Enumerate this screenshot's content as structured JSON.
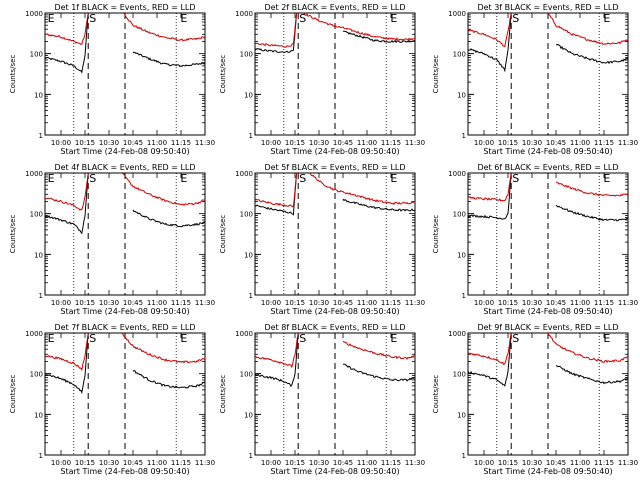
{
  "chart_data": [
    {
      "type": "line",
      "title": "Det 1f BLACK = Events, RED = LLD",
      "xlabel": "Start Time (24-Feb-08 09:50:40)",
      "ylabel": "Counts/sec",
      "yscale": "log",
      "ylim": [
        1,
        1000
      ],
      "xlim": [
        "09:50",
        "11:30"
      ],
      "xticks": [
        "10:00",
        "10:15",
        "10:30",
        "10:45",
        "11:00",
        "11:15",
        "11:30"
      ],
      "yticks": [
        "1",
        "10",
        "100",
        "1000"
      ],
      "markers": [
        "E",
        "S",
        "E"
      ],
      "series": [
        {
          "color": "#000000",
          "x": [
            "09:50",
            "10:00",
            "10:08",
            "10:13",
            "10:15",
            "10:17"
          ],
          "y": [
            80,
            65,
            50,
            35,
            90,
            1000
          ]
        },
        {
          "color": "#d00000",
          "x": [
            "09:50",
            "10:00",
            "10:08",
            "10:13",
            "10:15",
            "10:17"
          ],
          "y": [
            300,
            260,
            200,
            170,
            300,
            1000
          ]
        },
        {
          "color": "#000000",
          "x": [
            "10:45",
            "10:55",
            "11:05",
            "11:15",
            "11:25",
            "11:30"
          ],
          "y": [
            110,
            75,
            55,
            50,
            55,
            60
          ]
        },
        {
          "color": "#d00000",
          "x": [
            "10:39",
            "10:45",
            "10:55",
            "11:05",
            "11:15",
            "11:25",
            "11:30"
          ],
          "y": [
            1000,
            500,
            330,
            250,
            215,
            230,
            260
          ]
        }
      ]
    },
    {
      "type": "line",
      "title": "Det 2f BLACK = Events, RED = LLD",
      "xlabel": "Start Time (24-Feb-08 09:50:40)",
      "ylabel": "Counts/sec",
      "yscale": "log",
      "ylim": [
        1,
        1000
      ],
      "xlim": [
        "09:50",
        "11:30"
      ],
      "xticks": [
        "10:00",
        "10:15",
        "10:30",
        "10:45",
        "11:00",
        "11:15",
        "11:30"
      ],
      "yticks": [
        "1",
        "10",
        "100",
        "1000"
      ],
      "markers": [
        "S",
        "E"
      ],
      "series": [
        {
          "color": "#000000",
          "x": [
            "09:50",
            "10:00",
            "10:10",
            "10:14",
            "10:16"
          ],
          "y": [
            130,
            115,
            110,
            120,
            1000
          ]
        },
        {
          "color": "#d00000",
          "x": [
            "09:50",
            "10:00",
            "10:10",
            "10:14",
            "10:16"
          ],
          "y": [
            180,
            160,
            150,
            170,
            1000
          ]
        },
        {
          "color": "#000000",
          "x": [
            "10:45",
            "10:55",
            "11:05",
            "11:15",
            "11:25",
            "11:30"
          ],
          "y": [
            350,
            270,
            210,
            200,
            200,
            210
          ]
        },
        {
          "color": "#d00000",
          "x": [
            "10:20",
            "10:30",
            "10:40",
            "10:45",
            "10:55",
            "11:05",
            "11:15",
            "11:25",
            "11:30"
          ],
          "y": [
            1000,
            650,
            470,
            430,
            330,
            260,
            230,
            225,
            240
          ]
        }
      ]
    },
    {
      "type": "line",
      "title": "Det 3f BLACK = Events, RED = LLD",
      "xlabel": "Start Time (24-Feb-08 09:50:40)",
      "ylabel": "Counts/sec",
      "yscale": "log",
      "ylim": [
        1,
        1000
      ],
      "xlim": [
        "09:50",
        "11:30"
      ],
      "xticks": [
        "10:00",
        "10:15",
        "10:30",
        "10:45",
        "11:00",
        "11:15",
        "11:30"
      ],
      "yticks": [
        "1",
        "10",
        "100",
        "1000"
      ],
      "markers": [
        "S",
        "E"
      ],
      "series": [
        {
          "color": "#000000",
          "x": [
            "09:50",
            "10:00",
            "10:08",
            "10:13",
            "10:15",
            "10:17"
          ],
          "y": [
            130,
            100,
            70,
            40,
            120,
            1000
          ]
        },
        {
          "color": "#d00000",
          "x": [
            "09:50",
            "10:00",
            "10:08",
            "10:13",
            "10:15",
            "10:17"
          ],
          "y": [
            380,
            300,
            220,
            150,
            350,
            1000
          ]
        },
        {
          "color": "#000000",
          "x": [
            "10:45",
            "10:55",
            "11:05",
            "11:15",
            "11:25",
            "11:30"
          ],
          "y": [
            170,
            100,
            75,
            60,
            65,
            75
          ]
        },
        {
          "color": "#d00000",
          "x": [
            "10:40",
            "10:45",
            "10:55",
            "11:05",
            "11:15",
            "11:25",
            "11:30"
          ],
          "y": [
            1000,
            500,
            300,
            220,
            175,
            185,
            230
          ]
        }
      ]
    },
    {
      "type": "line",
      "title": "Det 4f BLACK = Events, RED = LLD",
      "xlabel": "Start Time (24-Feb-08 09:50:40)",
      "ylabel": "Counts/sec",
      "yscale": "log",
      "ylim": [
        1,
        1000
      ],
      "xlim": [
        "09:50",
        "11:30"
      ],
      "xticks": [
        "10:00",
        "10:15",
        "10:30",
        "10:45",
        "11:00",
        "11:15",
        "11:30"
      ],
      "yticks": [
        "1",
        "10",
        "100",
        "1000"
      ],
      "markers": [
        "E",
        "S",
        "E"
      ],
      "series": [
        {
          "color": "#000000",
          "x": [
            "09:50",
            "10:00",
            "10:08",
            "10:13",
            "10:15",
            "10:17"
          ],
          "y": [
            90,
            70,
            55,
            35,
            90,
            1000
          ]
        },
        {
          "color": "#d00000",
          "x": [
            "09:50",
            "10:00",
            "10:08",
            "10:13",
            "10:15",
            "10:17"
          ],
          "y": [
            250,
            200,
            160,
            120,
            250,
            1000
          ]
        },
        {
          "color": "#000000",
          "x": [
            "10:45",
            "10:55",
            "11:05",
            "11:15",
            "11:25",
            "11:30"
          ],
          "y": [
            120,
            75,
            55,
            50,
            55,
            60
          ]
        },
        {
          "color": "#d00000",
          "x": [
            "10:38",
            "10:45",
            "10:55",
            "11:05",
            "11:15",
            "11:25",
            "11:30"
          ],
          "y": [
            1000,
            470,
            300,
            210,
            165,
            180,
            220
          ]
        }
      ]
    },
    {
      "type": "line",
      "title": "Det 5f BLACK = Events, RED = LLD",
      "xlabel": "Start Time (24-Feb-08 09:50:40)",
      "ylabel": "Counts/sec",
      "yscale": "log",
      "ylim": [
        1,
        1000
      ],
      "xlim": [
        "09:50",
        "11:30"
      ],
      "xticks": [
        "10:00",
        "10:15",
        "10:30",
        "10:45",
        "11:00",
        "11:15",
        "11:30"
      ],
      "yticks": [
        "1",
        "10",
        "100",
        "1000"
      ],
      "markers": [
        "S",
        "E"
      ],
      "series": [
        {
          "color": "#000000",
          "x": [
            "09:50",
            "10:00",
            "10:10",
            "10:14",
            "10:16"
          ],
          "y": [
            160,
            130,
            110,
            100,
            1000
          ]
        },
        {
          "color": "#d00000",
          "x": [
            "09:50",
            "10:00",
            "10:10",
            "10:14",
            "10:16"
          ],
          "y": [
            220,
            180,
            160,
            150,
            1000
          ]
        },
        {
          "color": "#000000",
          "x": [
            "10:45",
            "10:55",
            "11:05",
            "11:15",
            "11:25",
            "11:30"
          ],
          "y": [
            220,
            170,
            140,
            125,
            120,
            125
          ]
        },
        {
          "color": "#d00000",
          "x": [
            "10:24",
            "10:32",
            "10:40",
            "10:45",
            "10:55",
            "11:05",
            "11:15",
            "11:25",
            "11:30"
          ],
          "y": [
            1000,
            550,
            380,
            340,
            270,
            210,
            180,
            180,
            200
          ]
        }
      ]
    },
    {
      "type": "line",
      "title": "Det 6f BLACK = Events, RED = LLD",
      "xlabel": "Start Time (24-Feb-08 09:50:40)",
      "ylabel": "Counts/sec",
      "yscale": "log",
      "ylim": [
        1,
        1000
      ],
      "xlim": [
        "09:50",
        "11:30"
      ],
      "xticks": [
        "10:00",
        "10:15",
        "10:30",
        "10:45",
        "11:00",
        "11:15",
        "11:30"
      ],
      "yticks": [
        "1",
        "10",
        "100",
        "1000"
      ],
      "markers": [
        "S",
        "E"
      ],
      "series": [
        {
          "color": "#000000",
          "x": [
            "09:50",
            "10:00",
            "10:08",
            "10:13",
            "10:15",
            "10:17"
          ],
          "y": [
            90,
            85,
            80,
            75,
            100,
            1000
          ]
        },
        {
          "color": "#d00000",
          "x": [
            "09:50",
            "10:00",
            "10:08",
            "10:13",
            "10:15",
            "10:17"
          ],
          "y": [
            250,
            230,
            220,
            210,
            300,
            1000
          ]
        },
        {
          "color": "#000000",
          "x": [
            "10:45",
            "10:55",
            "11:05",
            "11:15",
            "11:25",
            "11:30"
          ],
          "y": [
            160,
            110,
            85,
            70,
            70,
            75
          ]
        },
        {
          "color": "#d00000",
          "x": [
            "10:45",
            "10:55",
            "11:05",
            "11:15",
            "11:25",
            "11:30"
          ],
          "y": [
            580,
            420,
            320,
            280,
            280,
            300
          ]
        }
      ]
    },
    {
      "type": "line",
      "title": "Det 7f BLACK = Events, RED = LLD",
      "xlabel": "Start Time (24-Feb-08 09:50:40)",
      "ylabel": "Counts/sec",
      "yscale": "log",
      "ylim": [
        1,
        1000
      ],
      "xlim": [
        "09:50",
        "11:30"
      ],
      "xticks": [
        "10:00",
        "10:15",
        "10:30",
        "10:45",
        "11:00",
        "11:15",
        "11:30"
      ],
      "yticks": [
        "1",
        "10",
        "100",
        "1000"
      ],
      "markers": [
        "E",
        "S",
        "E"
      ],
      "series": [
        {
          "color": "#000000",
          "x": [
            "09:50",
            "10:00",
            "10:08",
            "10:13",
            "10:15",
            "10:17"
          ],
          "y": [
            100,
            75,
            55,
            35,
            90,
            1000
          ]
        },
        {
          "color": "#d00000",
          "x": [
            "09:50",
            "10:00",
            "10:08",
            "10:13",
            "10:15",
            "10:17"
          ],
          "y": [
            280,
            230,
            180,
            130,
            280,
            1000
          ]
        },
        {
          "color": "#000000",
          "x": [
            "10:45",
            "10:55",
            "11:05",
            "11:15",
            "11:25",
            "11:30"
          ],
          "y": [
            120,
            70,
            50,
            45,
            50,
            60
          ]
        },
        {
          "color": "#d00000",
          "x": [
            "10:38",
            "10:45",
            "10:55",
            "11:05",
            "11:15",
            "11:25",
            "11:30"
          ],
          "y": [
            1000,
            470,
            300,
            220,
            190,
            200,
            240
          ]
        }
      ]
    },
    {
      "type": "line",
      "title": "Det 8f BLACK = Events, RED = LLD",
      "xlabel": "Start Time (24-Feb-08 09:50:40)",
      "ylabel": "Counts/sec",
      "yscale": "log",
      "ylim": [
        1,
        1000
      ],
      "xlim": [
        "09:50",
        "11:30"
      ],
      "xticks": [
        "10:00",
        "10:15",
        "10:30",
        "10:45",
        "11:00",
        "11:15",
        "11:30"
      ],
      "yticks": [
        "1",
        "10",
        "100",
        "1000"
      ],
      "markers": [
        "S",
        "E"
      ],
      "series": [
        {
          "color": "#000000",
          "x": [
            "09:50",
            "10:00",
            "10:08",
            "10:13",
            "10:15",
            "10:17"
          ],
          "y": [
            95,
            80,
            65,
            50,
            100,
            1000
          ]
        },
        {
          "color": "#d00000",
          "x": [
            "09:50",
            "10:00",
            "10:08",
            "10:13",
            "10:15",
            "10:17"
          ],
          "y": [
            260,
            220,
            180,
            150,
            300,
            1000
          ]
        },
        {
          "color": "#000000",
          "x": [
            "10:45",
            "10:55",
            "11:05",
            "11:15",
            "11:25",
            "11:30"
          ],
          "y": [
            170,
            110,
            85,
            70,
            70,
            80
          ]
        },
        {
          "color": "#d00000",
          "x": [
            "10:45",
            "10:55",
            "11:05",
            "11:15",
            "11:25",
            "11:30"
          ],
          "y": [
            600,
            420,
            320,
            260,
            240,
            270
          ]
        }
      ]
    },
    {
      "type": "line",
      "title": "Det 9f BLACK = Events, RED = LLD",
      "xlabel": "Start Time (24-Feb-08 09:50:40)",
      "ylabel": "Counts/sec",
      "yscale": "log",
      "ylim": [
        1,
        1000
      ],
      "xlim": [
        "09:50",
        "11:30"
      ],
      "xticks": [
        "10:00",
        "10:15",
        "10:30",
        "10:45",
        "11:00",
        "11:15",
        "11:30"
      ],
      "yticks": [
        "1",
        "10",
        "100",
        "1000"
      ],
      "markers": [
        "S",
        "E"
      ],
      "series": [
        {
          "color": "#000000",
          "x": [
            "09:50",
            "10:00",
            "10:08",
            "10:13",
            "10:15",
            "10:17"
          ],
          "y": [
            110,
            90,
            70,
            50,
            110,
            1000
          ]
        },
        {
          "color": "#d00000",
          "x": [
            "09:50",
            "10:00",
            "10:08",
            "10:13",
            "10:15",
            "10:17"
          ],
          "y": [
            320,
            270,
            220,
            170,
            330,
            1000
          ]
        },
        {
          "color": "#000000",
          "x": [
            "10:45",
            "10:55",
            "11:05",
            "11:15",
            "11:25",
            "11:30"
          ],
          "y": [
            160,
            100,
            75,
            60,
            65,
            75
          ]
        },
        {
          "color": "#d00000",
          "x": [
            "10:40",
            "10:45",
            "10:55",
            "11:05",
            "11:15",
            "11:25",
            "11:30"
          ],
          "y": [
            1000,
            520,
            330,
            240,
            200,
            210,
            260
          ]
        }
      ]
    }
  ]
}
